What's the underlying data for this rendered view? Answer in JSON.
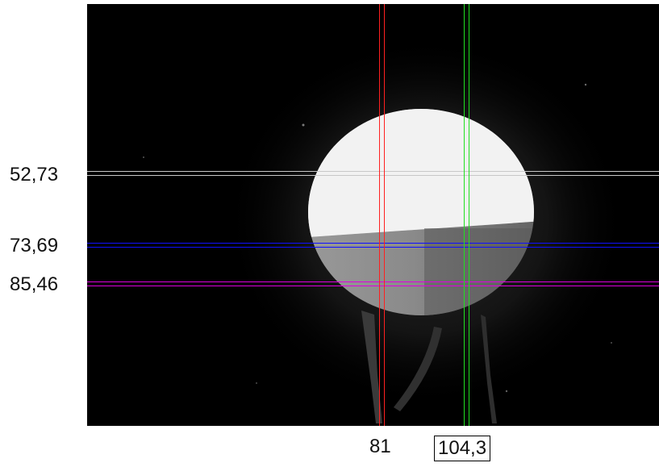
{
  "cursors": {
    "horizontal": [
      {
        "value": "52,73",
        "color": "#c8c8c8"
      },
      {
        "value": "73,69",
        "color": "#1010ff"
      },
      {
        "value": "85,46",
        "color": "#e000e0"
      }
    ],
    "vertical": [
      {
        "value": "81",
        "color": "#ff2020"
      },
      {
        "value": "104,3",
        "color": "#20e020",
        "selected": true
      }
    ]
  }
}
